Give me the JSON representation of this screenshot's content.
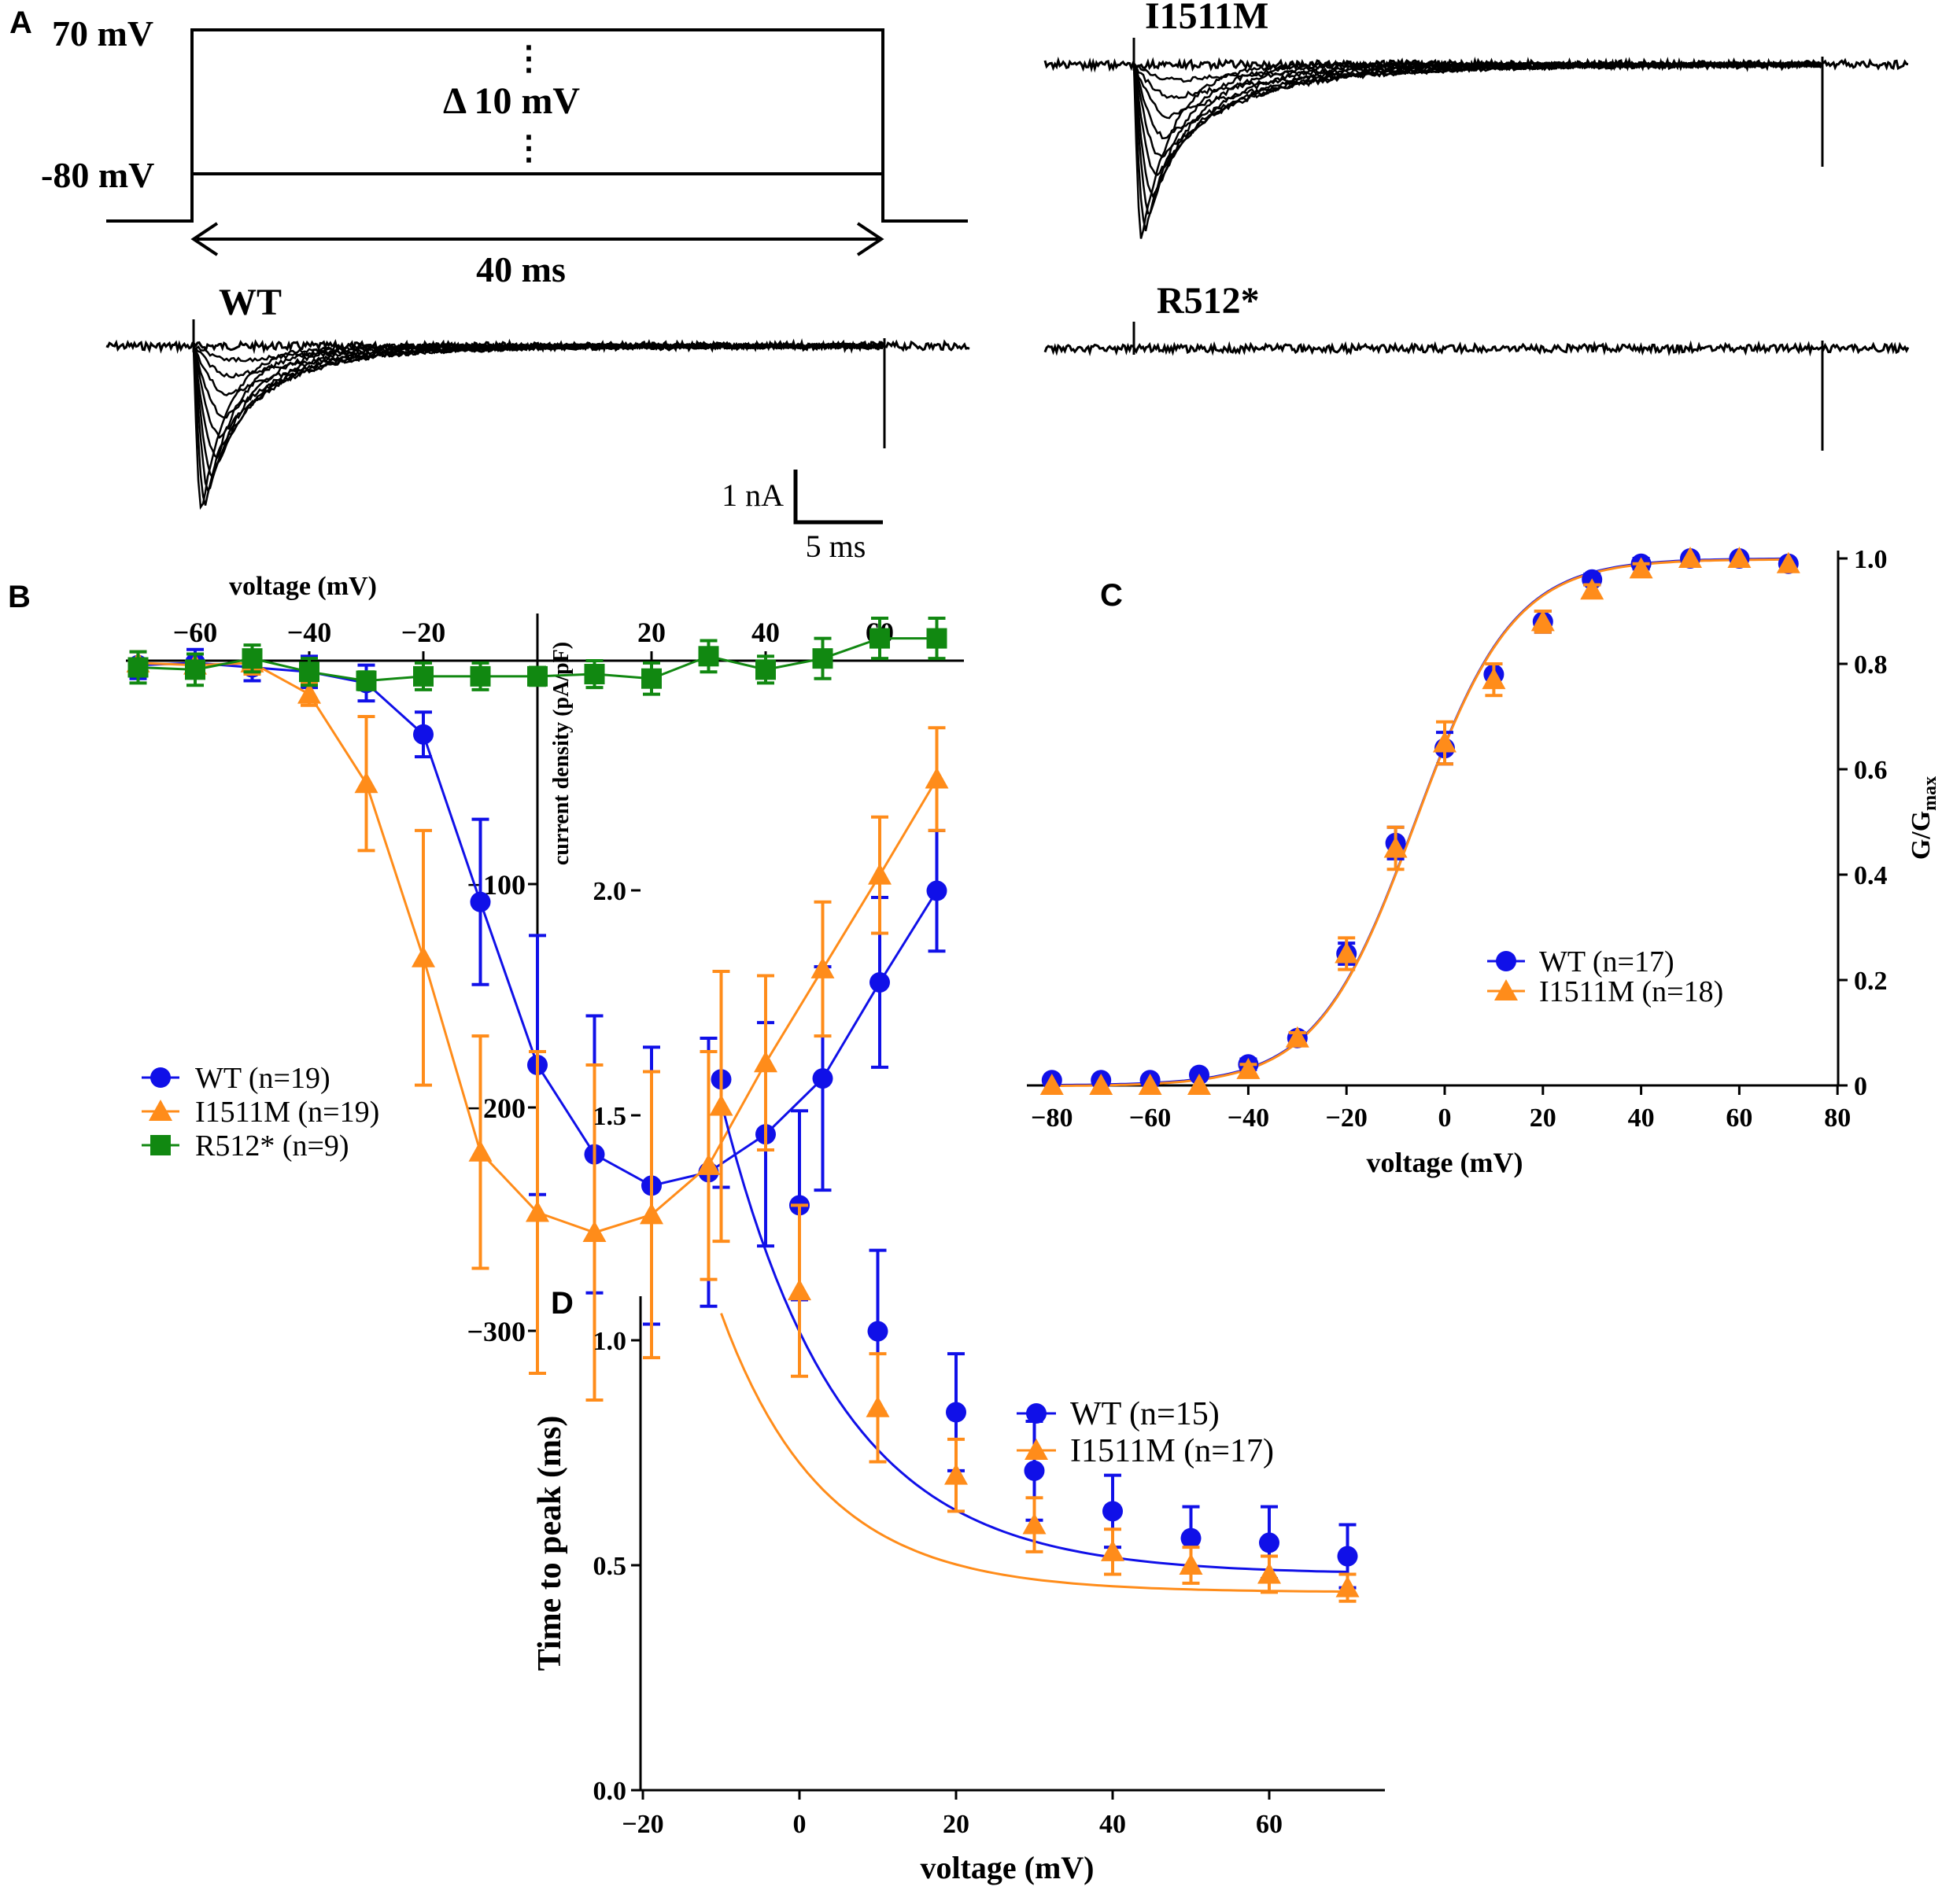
{
  "colors": {
    "wt": "#1010e8",
    "mut": "#ff8c1a",
    "r512": "#118811",
    "line": "#000000"
  },
  "panelA": {
    "label": "A",
    "protocol": {
      "top_label": "70 mV",
      "bottom_label": "-80 mV",
      "step_label": "Δ 10 mV",
      "duration_label": "40 ms",
      "dots": "⋮"
    },
    "traces": {
      "wt": "WT",
      "i1511m": "I1511M",
      "r512": "R512*"
    },
    "scalebar": {
      "current": "1 nA",
      "time": "5 ms"
    }
  },
  "chart_data": [
    {
      "panel": "B",
      "type": "line",
      "xlabel": "voltage (mV)",
      "ylabel": "current density (pA/pF)",
      "xlim": [
        -70,
        75
      ],
      "ylim": [
        -330,
        10
      ],
      "xticks": [
        -60,
        -40,
        -20,
        20,
        40,
        60
      ],
      "yticks": [
        -100,
        -200,
        -300
      ],
      "xtick_labels": [
        "−60",
        "−40",
        "−20",
        "20",
        "40",
        "60"
      ],
      "ytick_labels": [
        "−100",
        "−200",
        "−300"
      ],
      "series": [
        {
          "name": "WT (n=19)",
          "key": "wt",
          "marker": "circle",
          "x": [
            -70,
            -60,
            -50,
            -40,
            -30,
            -20,
            -10,
            0,
            10,
            20,
            30,
            40,
            50,
            60,
            70
          ],
          "y": [
            -2,
            -1,
            -3,
            -5,
            -10,
            -33,
            -108,
            -181,
            -221,
            -235,
            -229,
            -212,
            -187,
            -144,
            -103
          ],
          "err": [
            6,
            6,
            6,
            7,
            8,
            10,
            37,
            58,
            62,
            62,
            60,
            50,
            50,
            38,
            27
          ]
        },
        {
          "name": "I1511M (n=19)",
          "key": "mut",
          "marker": "triangle",
          "x": [
            -70,
            -60,
            -50,
            -40,
            -30,
            -20,
            -10,
            0,
            10,
            20,
            30,
            40,
            50,
            60,
            70
          ],
          "y": [
            -1,
            -2,
            -1,
            -15,
            -55,
            -133,
            -220,
            -247,
            -256,
            -248,
            -226,
            -180,
            -138,
            -96,
            -53
          ],
          "err": [
            5,
            5,
            5,
            5,
            30,
            57,
            52,
            72,
            75,
            64,
            51,
            39,
            30,
            26,
            23
          ]
        },
        {
          "name": "R512* (n=9)",
          "key": "r512",
          "marker": "square",
          "x": [
            -70,
            -60,
            -50,
            -40,
            -30,
            -20,
            -10,
            0,
            10,
            20,
            30,
            40,
            50,
            60,
            70
          ],
          "y": [
            -3,
            -4,
            1,
            -5,
            -9,
            -7,
            -7,
            -7,
            -6,
            -8,
            2,
            -4,
            1,
            10,
            10
          ],
          "err": [
            7,
            7,
            6,
            6,
            4,
            6,
            6,
            4,
            6,
            7,
            7,
            6,
            9,
            9,
            9
          ]
        }
      ]
    },
    {
      "panel": "C",
      "type": "line",
      "xlabel": "voltage (mV)",
      "ylabel": "G/G",
      "ylabel_sub": "max",
      "xlim": [
        -80,
        80
      ],
      "ylim": [
        0,
        1.0
      ],
      "xticks": [
        -80,
        -60,
        -40,
        -20,
        0,
        20,
        40,
        60,
        80
      ],
      "xtick_labels": [
        "−80",
        "−60",
        "−40",
        "−20",
        "0",
        "20",
        "40",
        "60",
        "80"
      ],
      "yticks": [
        0,
        0.2,
        0.4,
        0.6,
        0.8,
        1.0
      ],
      "ytick_labels": [
        "0",
        "0.2",
        "0.4",
        "0.6",
        "0.8",
        "1.0"
      ],
      "fit": {
        "type": "boltzmann",
        "v_half": -6,
        "k": 10
      },
      "series": [
        {
          "name": "WT (n=17)",
          "key": "wt",
          "marker": "circle",
          "x": [
            -80,
            -70,
            -60,
            -50,
            -40,
            -30,
            -20,
            -10,
            0,
            10,
            20,
            30,
            40,
            50,
            60,
            70
          ],
          "y": [
            0.01,
            0.01,
            0.01,
            0.02,
            0.04,
            0.09,
            0.25,
            0.46,
            0.64,
            0.78,
            0.88,
            0.96,
            0.99,
            1.0,
            1.0,
            0.99
          ],
          "err": [
            0,
            0,
            0,
            0,
            0.01,
            0.01,
            0.02,
            0.03,
            0.03,
            0.02,
            0.02,
            0.01,
            0.01,
            0,
            0,
            0
          ]
        },
        {
          "name": "I1511M (n=18)",
          "key": "mut",
          "marker": "triangle",
          "x": [
            -80,
            -70,
            -60,
            -50,
            -40,
            -30,
            -20,
            -10,
            0,
            10,
            20,
            30,
            40,
            50,
            60,
            70
          ],
          "y": [
            0.0,
            0.0,
            0.0,
            0.0,
            0.03,
            0.09,
            0.25,
            0.45,
            0.65,
            0.77,
            0.88,
            0.94,
            0.98,
            1.0,
            1.0,
            0.99
          ],
          "err": [
            0,
            0,
            0,
            0,
            0.01,
            0.01,
            0.03,
            0.04,
            0.04,
            0.03,
            0.02,
            0.01,
            0.01,
            0,
            0,
            0
          ]
        }
      ]
    },
    {
      "panel": "D",
      "type": "line",
      "xlabel": "voltage (mV)",
      "ylabel": "Time to peak (ms)",
      "xlim": [
        -20,
        75
      ],
      "ylim": [
        0,
        2.15
      ],
      "xticks": [
        -20,
        0,
        20,
        40,
        60
      ],
      "xtick_labels": [
        "−20",
        "0",
        "20",
        "40",
        "60"
      ],
      "yticks": [
        0,
        0.5,
        1.0,
        1.5,
        2.0
      ],
      "ytick_labels": [
        "0.0",
        "0.5",
        "1.0",
        "1.5",
        "2.0"
      ],
      "series": [
        {
          "name": "WT (n=15)",
          "key": "wt",
          "marker": "circle",
          "x": [
            -10,
            0,
            10,
            20,
            30,
            40,
            50,
            60,
            70
          ],
          "y": [
            1.58,
            1.3,
            1.02,
            0.84,
            0.71,
            0.62,
            0.56,
            0.55,
            0.52
          ],
          "err": [
            0.24,
            0.21,
            0.18,
            0.13,
            0.11,
            0.08,
            0.07,
            0.08,
            0.07
          ],
          "fit": {
            "a": 1.05,
            "tau": 15.0,
            "c": 0.48
          }
        },
        {
          "name": "I1511M (n=17)",
          "key": "mut",
          "marker": "triangle",
          "x": [
            -10,
            0,
            10,
            20,
            30,
            40,
            50,
            60,
            70
          ],
          "y": [
            1.52,
            1.11,
            0.85,
            0.7,
            0.59,
            0.53,
            0.5,
            0.48,
            0.45
          ],
          "err": [
            0.3,
            0.19,
            0.12,
            0.08,
            0.06,
            0.05,
            0.04,
            0.04,
            0.03
          ],
          "fit": {
            "a": 0.62,
            "tau": 13.0,
            "c": 0.44
          }
        }
      ]
    }
  ]
}
